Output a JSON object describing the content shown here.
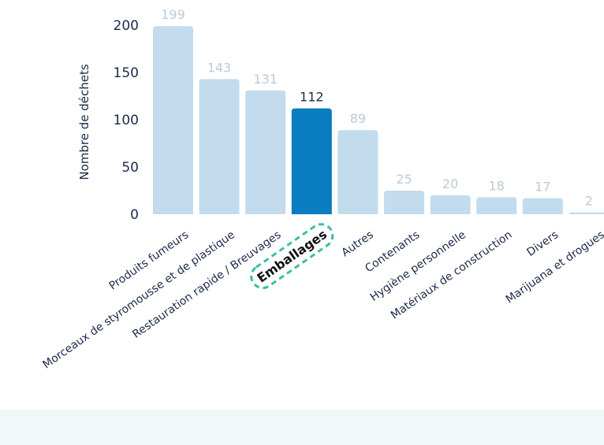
{
  "chart_data": {
    "type": "bar",
    "title": "",
    "xlabel": "",
    "ylabel": "Nombre de déchets",
    "ylim": [
      0,
      200
    ],
    "yticks": [
      0,
      50,
      100,
      150,
      200
    ],
    "grid": false,
    "categories": [
      "Produits fumeurs",
      "Morceaux de styromousse et de plastique",
      "Restauration rapide / Breuvages",
      "Emballages",
      "Autres",
      "Contenants",
      "Hygiène personnelle",
      "Matériaux de construction",
      "Divers",
      "Marijuana et drogues"
    ],
    "values": [
      199,
      143,
      131,
      112,
      89,
      25,
      20,
      18,
      17,
      2
    ],
    "highlighted_category": "Emballages",
    "colors": {
      "bar": "#c3dced",
      "highlight_bar": "#0a7cc0",
      "highlight_outline": "#3dbfa0",
      "data_label": "#b9cbd9",
      "text": "#1c2a4a"
    }
  }
}
